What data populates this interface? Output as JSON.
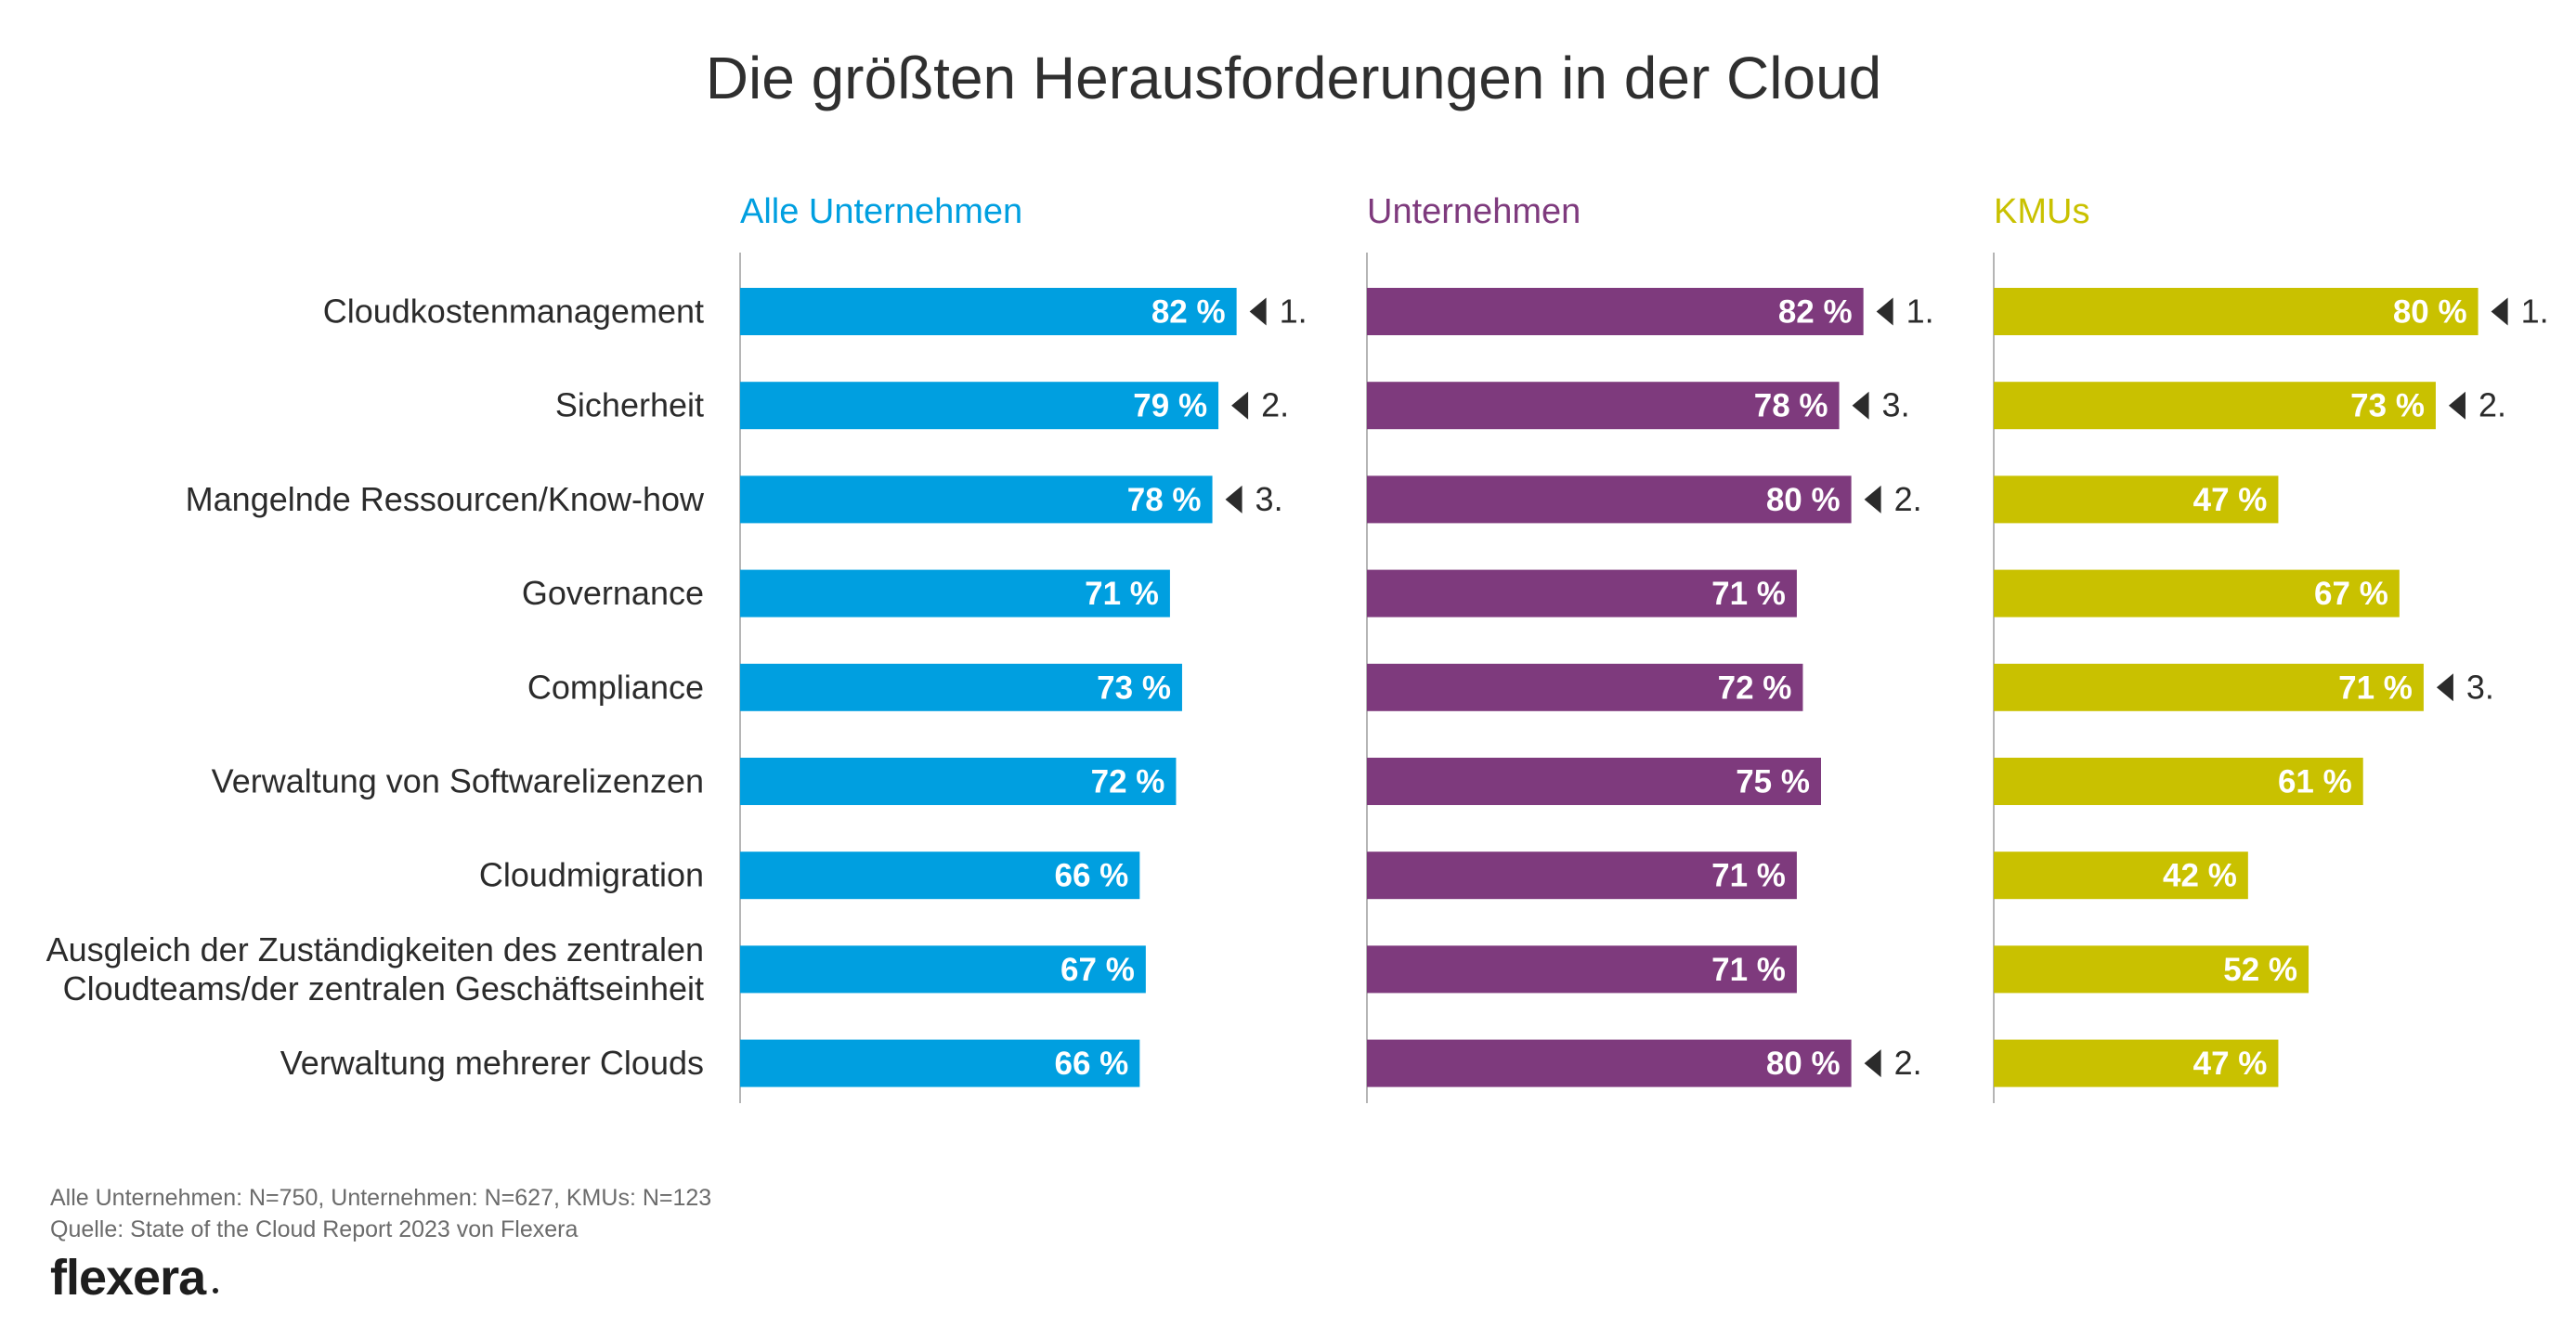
{
  "chart_data": {
    "type": "bar",
    "orientation": "horizontal",
    "title": "Die größten Herausforderungen in der Cloud",
    "categories": [
      "Cloudkostenmanagement",
      "Sicherheit",
      "Mangelnde Ressourcen/Know-how",
      "Governance",
      "Compliance",
      "Verwaltung von Softwarelizenzen",
      "Cloudmigration",
      "Ausgleich der Zuständigkeiten des zentralen|Cloudteams/der zentralen Geschäftseinheit",
      "Verwaltung mehrerer Clouds"
    ],
    "value_suffix": " %",
    "series": [
      {
        "name": "Alle Unternehmen",
        "color": "#009fe0",
        "values": [
          82,
          79,
          78,
          71,
          73,
          72,
          66,
          67,
          66
        ],
        "ranks": [
          "1.",
          "2.",
          "3.",
          "",
          "",
          "",
          "",
          "",
          ""
        ]
      },
      {
        "name": "Unternehmen",
        "color": "#7e3a7d",
        "values": [
          82,
          78,
          80,
          71,
          72,
          75,
          71,
          71,
          80
        ],
        "ranks": [
          "1.",
          "3.",
          "2.",
          "",
          "",
          "",
          "",
          "",
          "2."
        ]
      },
      {
        "name": "KMUs",
        "color": "#c9c100",
        "values": [
          80,
          73,
          47,
          67,
          71,
          61,
          42,
          52,
          47
        ],
        "ranks": [
          "1.",
          "2.",
          "",
          "",
          "3.",
          "",
          "",
          "",
          ""
        ]
      }
    ],
    "xlim": [
      0,
      100
    ],
    "grid": false,
    "legend": "none"
  },
  "notes": {
    "sample": "Alle Unternehmen: N=750, Unternehmen: N=627, KMUs: N=123",
    "source": "Quelle: State of the Cloud Report 2023 von Flexera"
  },
  "logo": {
    "text": "flexera"
  },
  "colors": {
    "text": "#2b2b2b",
    "axis": "#b5b5b5",
    "rank_marker": "#2b2b2b"
  }
}
